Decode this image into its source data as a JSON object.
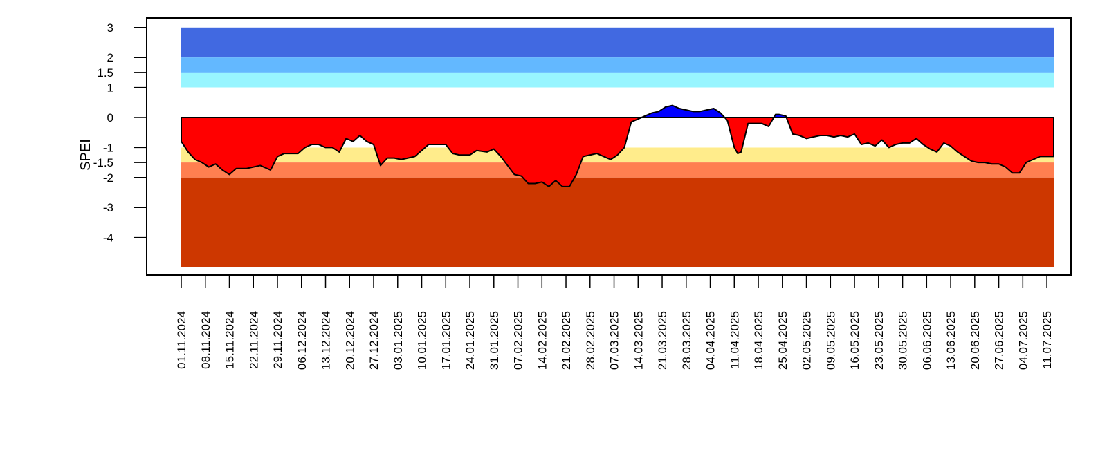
{
  "chart_data": {
    "type": "area",
    "title": "",
    "xlabel": "",
    "ylabel": "SPEI",
    "ylim": [
      -5,
      3
    ],
    "yticks": [
      3,
      2,
      1.5,
      1,
      0,
      -1,
      -1.5,
      -2,
      -3,
      -4
    ],
    "ytick_labels": [
      "3",
      "2",
      "1.5",
      "1",
      "0",
      "-1",
      "-1.5",
      "-2",
      "-3",
      "-4"
    ],
    "x_start": "01.11.2024",
    "x_end": "13.07.2025",
    "x_tick_labels": [
      "01.11.2024",
      "08.11.2024",
      "15.11.2024",
      "22.11.2024",
      "29.11.2024",
      "06.12.2024",
      "13.12.2024",
      "20.12.2024",
      "27.12.2024",
      "03.01.2025",
      "10.01.2025",
      "17.01.2025",
      "24.01.2025",
      "31.01.2025",
      "07.02.2025",
      "14.02.2025",
      "21.02.2025",
      "28.02.2025",
      "07.03.2025",
      "14.03.2025",
      "21.03.2025",
      "28.03.2025",
      "04.04.2025",
      "11.04.2025",
      "18.04.2025",
      "25.04.2025",
      "02.05.2025",
      "09.05.2025",
      "16.05.2025",
      "23.05.2025",
      "30.05.2025",
      "06.06.2025",
      "13.06.2025",
      "20.06.2025",
      "27.06.2025",
      "04.07.2025",
      "11.07.2025"
    ],
    "bands": [
      {
        "from": 2,
        "to": 3,
        "color": "#4169E1"
      },
      {
        "from": 1.5,
        "to": 2,
        "color": "#63B8FF"
      },
      {
        "from": 1,
        "to": 1.5,
        "color": "#98F5FF"
      },
      {
        "from": -1.5,
        "to": -1,
        "color": "#FFEC8B"
      },
      {
        "from": -2,
        "to": -1.5,
        "color": "#FF7F50"
      },
      {
        "from": -5,
        "to": -2,
        "color": "#CD3700"
      }
    ],
    "positive_color": "#0000FF",
    "negative_color": "#FF0000",
    "series": [
      {
        "x": [
          "01.11.2024",
          "03.11.2024",
          "05.11.2024",
          "07.11.2024",
          "09.11.2024",
          "11.11.2024",
          "13.11.2024",
          "15.11.2024",
          "17.11.2024",
          "20.11.2024",
          "24.11.2024",
          "27.11.2024",
          "29.11.2024",
          "01.12.2024",
          "03.12.2024",
          "05.12.2024",
          "07.12.2024",
          "09.12.2024",
          "11.12.2024",
          "13.12.2024",
          "15.12.2024",
          "17.12.2024",
          "19.12.2024",
          "21.12.2024",
          "23.12.2024",
          "25.12.2024",
          "27.12.2024",
          "29.12.2024",
          "31.12.2024",
          "02.01.2025",
          "04.01.2025",
          "06.01.2025",
          "08.01.2025",
          "10.01.2025",
          "12.01.2025",
          "14.01.2025",
          "17.01.2025",
          "19.01.2025",
          "21.01.2025",
          "24.01.2025",
          "26.01.2025",
          "29.01.2025",
          "31.01.2025",
          "02.02.2025",
          "04.02.2025",
          "06.02.2025",
          "08.02.2025",
          "10.02.2025",
          "12.02.2025",
          "14.02.2025",
          "16.02.2025",
          "18.02.2025",
          "20.02.2025",
          "22.02.2025",
          "24.02.2025",
          "26.02.2025",
          "28.02.2025",
          "02.03.2025",
          "04.03.2025",
          "06.03.2025",
          "08.03.2025",
          "10.03.2025",
          "12.03.2025",
          "14.03.2025",
          "16.03.2025",
          "18.03.2025",
          "20.03.2025",
          "22.03.2025",
          "24.03.2025",
          "26.03.2025",
          "28.03.2025",
          "30.03.2025",
          "01.04.2025",
          "03.04.2025",
          "05.04.2025",
          "07.04.2025",
          "09.04.2025",
          "11.04.2025",
          "12.04.2025",
          "13.04.2025",
          "15.04.2025",
          "17.04.2025",
          "19.04.2025",
          "21.04.2025",
          "23.04.2025",
          "24.04.2025",
          "26.04.2025",
          "28.04.2025",
          "30.04.2025",
          "02.05.2025",
          "04.05.2025",
          "06.05.2025",
          "08.05.2025",
          "10.05.2025",
          "12.05.2025",
          "14.05.2025",
          "16.05.2025",
          "18.05.2025",
          "20.05.2025",
          "22.05.2025",
          "24.05.2025",
          "26.05.2025",
          "28.05.2025",
          "30.05.2025",
          "01.06.2025",
          "03.06.2025",
          "05.06.2025",
          "07.06.2025",
          "09.06.2025",
          "11.06.2025",
          "13.06.2025",
          "15.06.2025",
          "17.06.2025",
          "19.06.2025",
          "21.06.2025",
          "23.06.2025",
          "25.06.2025",
          "27.06.2025",
          "29.06.2025",
          "01.07.2025",
          "03.07.2025",
          "05.07.2025",
          "07.07.2025",
          "09.07.2025",
          "11.07.2025",
          "13.07.2025"
        ],
        "y": [
          -0.8,
          -1.15,
          -1.4,
          -1.5,
          -1.65,
          -1.55,
          -1.75,
          -1.9,
          -1.7,
          -1.7,
          -1.6,
          -1.75,
          -1.3,
          -1.2,
          -1.2,
          -1.2,
          -1.0,
          -0.9,
          -0.9,
          -1.0,
          -1.0,
          -1.15,
          -0.7,
          -0.8,
          -0.6,
          -0.8,
          -0.9,
          -1.6,
          -1.35,
          -1.35,
          -1.4,
          -1.35,
          -1.3,
          -1.1,
          -0.9,
          -0.9,
          -0.9,
          -1.2,
          -1.25,
          -1.25,
          -1.1,
          -1.15,
          -1.05,
          -1.3,
          -1.6,
          -1.9,
          -1.95,
          -2.2,
          -2.2,
          -2.15,
          -2.3,
          -2.1,
          -2.3,
          -2.3,
          -1.9,
          -1.3,
          -1.25,
          -1.2,
          -1.3,
          -1.4,
          -1.25,
          -1.0,
          -0.15,
          -0.05,
          0.05,
          0.15,
          0.2,
          0.35,
          0.4,
          0.3,
          0.25,
          0.2,
          0.2,
          0.25,
          0.3,
          0.15,
          -0.1,
          -1.0,
          -1.2,
          -1.15,
          -0.2,
          -0.2,
          -0.2,
          -0.3,
          0.1,
          0.1,
          0.05,
          -0.55,
          -0.6,
          -0.7,
          -0.65,
          -0.6,
          -0.6,
          -0.65,
          -0.6,
          -0.65,
          -0.55,
          -0.9,
          -0.85,
          -0.95,
          -0.75,
          -1.0,
          -0.9,
          -0.85,
          -0.85,
          -0.7,
          -0.9,
          -1.05,
          -1.15,
          -0.85,
          -0.95,
          -1.15,
          -1.3,
          -1.45,
          -1.5,
          -1.5,
          -1.55,
          -1.55,
          -1.65,
          -1.85,
          -1.85,
          -1.5,
          -1.4,
          -1.3,
          -1.3,
          -1.3
        ]
      }
    ],
    "legend": "none",
    "grid": false
  }
}
